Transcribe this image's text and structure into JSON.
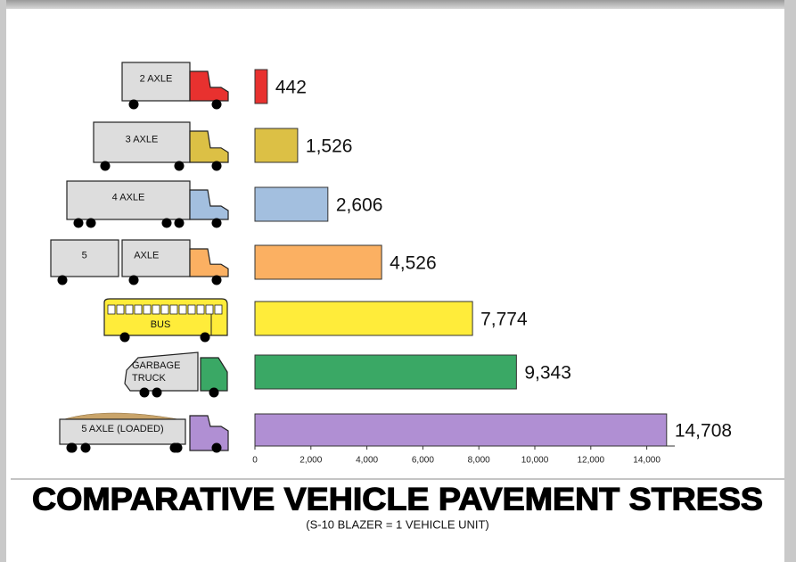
{
  "chart_data": {
    "type": "bar",
    "orientation": "horizontal",
    "title": "COMPARATIVE VEHICLE PAVEMENT STRESS",
    "subtitle": "(S-10 BLAZER = 1 VEHICLE UNIT)",
    "categories": [
      "2 AXLE",
      "3 AXLE",
      "4 AXLE",
      "5 AXLE",
      "BUS",
      "GARBAGE TRUCK",
      "5 AXLE (LOADED)"
    ],
    "values": [
      442,
      1526,
      2606,
      4526,
      7774,
      9343,
      14708
    ],
    "value_labels": [
      "442",
      "1,526",
      "2,606",
      "4,526",
      "7,774",
      "9,343",
      "14,708"
    ],
    "colors": [
      "#e8312f",
      "#dcc045",
      "#a3bfdf",
      "#fbb062",
      "#ffec3a",
      "#3aa865",
      "#b08fd3"
    ],
    "xlim": [
      0,
      15000
    ],
    "xticks": [
      0,
      {
        "value": 2000,
        "label": "2,000"
      },
      {
        "value": 4000,
        "label": "4,000"
      },
      {
        "value": 6000,
        "label": "6,000"
      },
      {
        "value": 8000,
        "label": "8,000"
      },
      {
        "value": 10000,
        "label": "10,000"
      },
      {
        "value": 12000,
        "label": "12,000"
      },
      {
        "value": 14000,
        "label": "14,000"
      }
    ]
  }
}
